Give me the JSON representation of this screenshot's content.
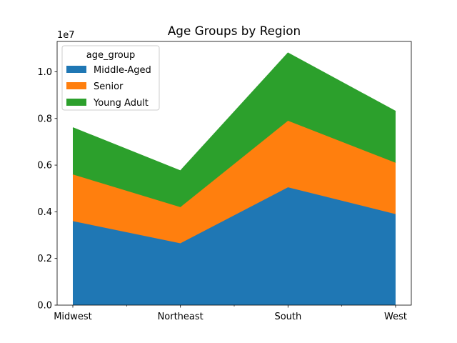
{
  "chart_data": {
    "type": "area",
    "stacked": true,
    "title": "Age Groups by Region",
    "xlabel": "",
    "ylabel": "",
    "y_offset_label": "1e7",
    "y_scale": 10000000,
    "categories": [
      "Midwest",
      "Northeast",
      "South",
      "West"
    ],
    "ylim": [
      0,
      11300000
    ],
    "y_ticks": [
      0,
      2000000,
      4000000,
      6000000,
      8000000,
      10000000
    ],
    "y_tick_labels": [
      "0.0",
      "0.2",
      "0.4",
      "0.6",
      "0.8",
      "1.0"
    ],
    "series": [
      {
        "name": "Middle-Aged",
        "color": "#1f77b4",
        "values": [
          3600000,
          2650000,
          5050000,
          3900000
        ]
      },
      {
        "name": "Senior",
        "color": "#ff7f0e",
        "values": [
          2000000,
          1550000,
          2850000,
          2200000
        ]
      },
      {
        "name": "Young Adult",
        "color": "#2ca02c",
        "values": [
          2000000,
          1550000,
          2900000,
          2200000
        ]
      }
    ],
    "legend": {
      "title": "age_group",
      "position": "top-left"
    },
    "grid": false
  }
}
